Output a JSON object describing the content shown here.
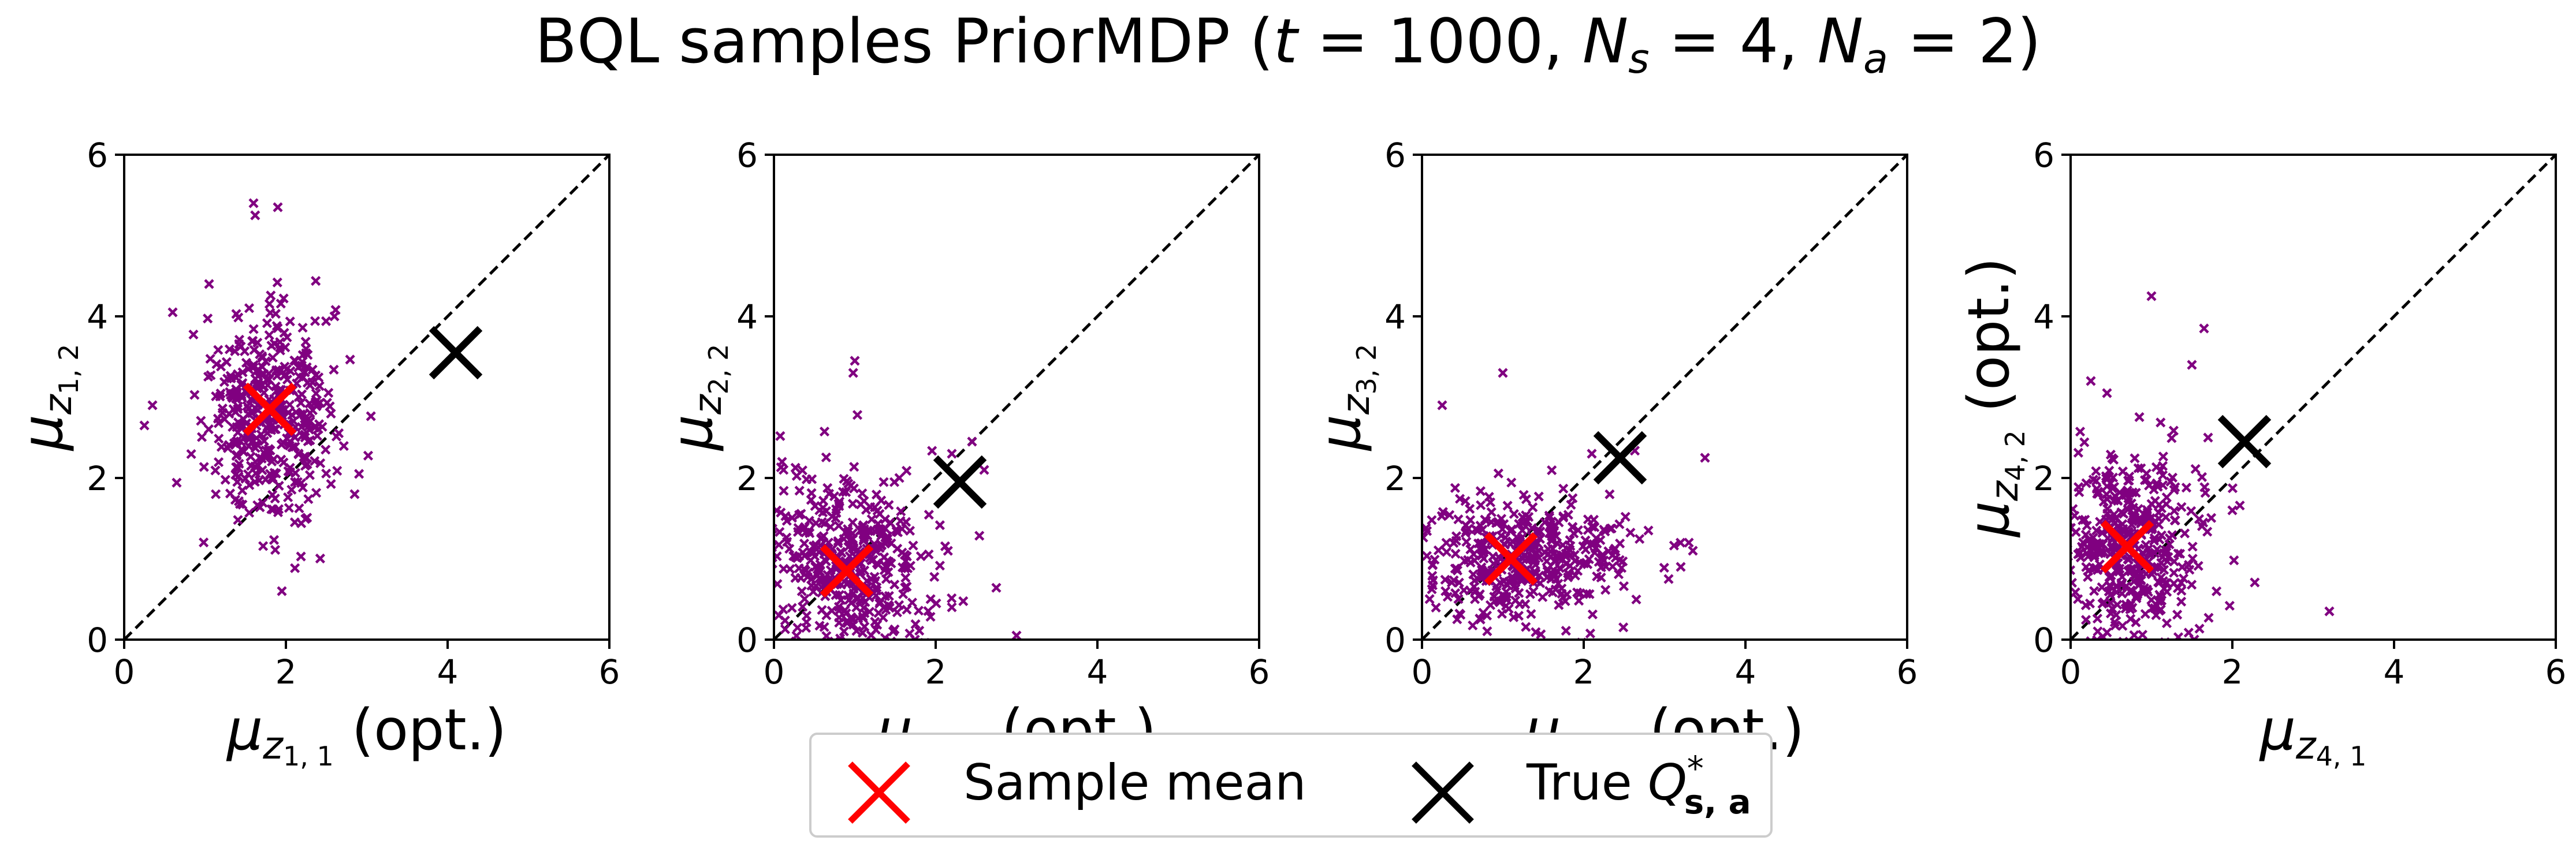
{
  "title": {
    "prefix": "BQL samples PriorMDP (",
    "t_symbol": "t",
    "t_value": " = 1000, ",
    "ns_symbol": "N",
    "ns_sub": "s",
    "ns_value": " = 4, ",
    "na_symbol": "N",
    "na_sub": "a",
    "na_value": " = 2)"
  },
  "legend": {
    "items": [
      {
        "label": "Sample mean",
        "color": "#ff0000",
        "marker": "x-marker-icon"
      },
      {
        "label_prefix": "True ",
        "label_symbol": "Q",
        "label_sup": "*",
        "label_sub": "s, a",
        "color": "#000000",
        "marker": "x-marker-icon"
      }
    ],
    "placement": "bottom-center"
  },
  "chart_data": [
    {
      "type": "scatter",
      "xlabel": {
        "symbol": "μ",
        "sub": "z",
        "subsub": "1, 1",
        "suffix": " (opt.)"
      },
      "ylabel": {
        "symbol": "μ",
        "sub": "z",
        "subsub": "1, 2",
        "suffix": ""
      },
      "xlim": [
        0,
        6
      ],
      "ylim": [
        0,
        6
      ],
      "xticks": [
        "0",
        "2",
        "4",
        "6"
      ],
      "yticks": [
        "0",
        "2",
        "4",
        "6"
      ],
      "diagonal": true,
      "grid": false,
      "sample_color": "#800080",
      "sample_center": [
        1.8,
        2.8
      ],
      "sample_spread": [
        0.38,
        0.65
      ],
      "sample_count": 420,
      "outliers": [
        [
          1.6,
          5.4
        ],
        [
          1.62,
          5.25
        ],
        [
          1.9,
          5.35
        ],
        [
          0.35,
          2.9
        ],
        [
          0.25,
          2.65
        ],
        [
          2.85,
          1.8
        ],
        [
          1.05,
          4.4
        ],
        [
          2.6,
          4.0
        ],
        [
          1.95,
          0.6
        ],
        [
          0.6,
          4.05
        ]
      ],
      "sample_mean": [
        1.8,
        2.85
      ],
      "true_q": [
        4.1,
        3.55
      ]
    },
    {
      "type": "scatter",
      "xlabel": {
        "symbol": "μ",
        "sub": "z",
        "subsub": "2, 1",
        "suffix": " (opt.)"
      },
      "ylabel": {
        "symbol": "μ",
        "sub": "z",
        "subsub": "2, 2",
        "suffix": ""
      },
      "xlim": [
        0,
        6
      ],
      "ylim": [
        0,
        6
      ],
      "xticks": [
        "0",
        "2",
        "4",
        "6"
      ],
      "yticks": [
        "0",
        "2",
        "4",
        "6"
      ],
      "diagonal": true,
      "grid": false,
      "sample_color": "#800080",
      "sample_center": [
        0.9,
        0.9
      ],
      "sample_spread": [
        0.55,
        0.55
      ],
      "sample_count": 420,
      "outliers": [
        [
          1.0,
          3.45
        ],
        [
          0.98,
          3.3
        ],
        [
          2.2,
          2.3
        ],
        [
          2.45,
          2.45
        ],
        [
          2.6,
          2.1
        ],
        [
          3.0,
          0.05
        ],
        [
          2.2,
          0.4
        ],
        [
          0.1,
          2.2
        ]
      ],
      "sample_mean": [
        0.9,
        0.85
      ],
      "true_q": [
        2.3,
        1.95
      ]
    },
    {
      "type": "scatter",
      "xlabel": {
        "symbol": "μ",
        "sub": "z",
        "subsub": "3, 1",
        "suffix": " (opt.)"
      },
      "ylabel": {
        "symbol": "μ",
        "sub": "z",
        "subsub": "3, 2",
        "suffix": ""
      },
      "xlim": [
        0,
        6
      ],
      "ylim": [
        0,
        6
      ],
      "xticks": [
        "0",
        "2",
        "4",
        "6"
      ],
      "yticks": [
        "0",
        "2",
        "4",
        "6"
      ],
      "diagonal": true,
      "grid": false,
      "sample_color": "#800080",
      "sample_center": [
        1.25,
        1.0
      ],
      "sample_spread": [
        0.65,
        0.38
      ],
      "sample_count": 420,
      "outliers": [
        [
          1.0,
          3.3
        ],
        [
          0.25,
          2.9
        ],
        [
          3.5,
          2.25
        ],
        [
          3.3,
          1.2
        ],
        [
          3.2,
          0.9
        ],
        [
          3.35,
          1.1
        ],
        [
          2.8,
          1.35
        ],
        [
          3.05,
          0.75
        ],
        [
          2.1,
          2.3
        ]
      ],
      "sample_mean": [
        1.1,
        1.0
      ],
      "true_q": [
        2.45,
        2.25
      ]
    },
    {
      "type": "scatter",
      "xlabel": {
        "symbol": "μ",
        "sub": "z",
        "subsub": "4, 1",
        "suffix": ""
      },
      "ylabel": {
        "symbol": "μ",
        "sub": "z",
        "subsub": "4, 2",
        "suffix": " (opt.)"
      },
      "xlim": [
        0,
        6
      ],
      "ylim": [
        0,
        6
      ],
      "xticks": [
        "0",
        "2",
        "4",
        "6"
      ],
      "yticks": [
        "0",
        "2",
        "4",
        "6"
      ],
      "diagonal": true,
      "grid": false,
      "sample_color": "#800080",
      "sample_center": [
        0.75,
        1.15
      ],
      "sample_spread": [
        0.45,
        0.55
      ],
      "sample_count": 420,
      "outliers": [
        [
          1.0,
          4.25
        ],
        [
          1.65,
          3.85
        ],
        [
          0.25,
          3.2
        ],
        [
          3.2,
          0.35
        ],
        [
          2.0,
          1.6
        ],
        [
          1.7,
          2.5
        ],
        [
          1.5,
          3.4
        ],
        [
          0.45,
          3.05
        ]
      ],
      "sample_mean": [
        0.7,
        1.15
      ],
      "true_q": [
        2.15,
        2.45
      ]
    }
  ]
}
